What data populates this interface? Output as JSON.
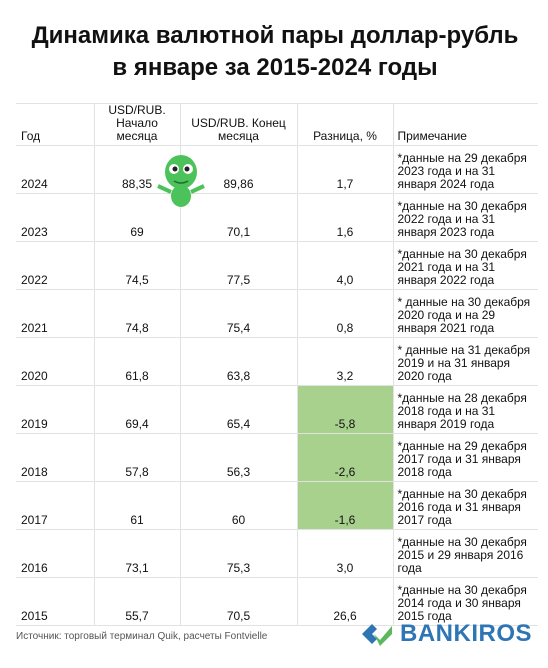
{
  "header": {
    "title": "Динамика валютной пары доллар-рубль в январе за 2015-2024 годы"
  },
  "table": {
    "columns": [
      "Год",
      "USD/RUB. Начало месяца",
      "USD/RUB. Конец месяца",
      "Разница, %",
      "Примечание"
    ],
    "rows": [
      [
        "2024",
        "88,35",
        "89,86",
        "1,7",
        "*данные на 29 декабря 2023 года и на 31 января 2024 года"
      ],
      [
        "2023",
        "69",
        "70,1",
        "1,6",
        "*данные на 30 декабря 2022 года и на 31 января 2023 года"
      ],
      [
        "2022",
        "74,5",
        "77,5",
        "4,0",
        "*данные на 30 декабря 2021 года и на 31 января 2022 года"
      ],
      [
        "2021",
        "74,8",
        "75,4",
        "0,8",
        "* данные на 30 декабря 2020 года и на  29 января 2021 года"
      ],
      [
        "2020",
        "61,8",
        "63,8",
        "3,2",
        "* данные на 31 декабря 2019 и на 31 января 2020  года"
      ],
      [
        "2019",
        "69,4",
        "65,4",
        "-5,8",
        "*данные на 28 декабря 2018 года и на 31 января 2019 года"
      ],
      [
        "2018",
        "57,8",
        "56,3",
        "-2,6",
        "*данные на 29 декабря 2017 года и 31 января 2018 года"
      ],
      [
        "2017",
        "61",
        "60",
        "-1,6",
        "*данные на 30 декабря 2016 года и 31 января 2017 года"
      ],
      [
        "2016",
        "73,1",
        "75,3",
        "3,0",
        "*данные на 30 декабря 2015 и 29 января 2016 года"
      ],
      [
        "2015",
        "55,7",
        "70,5",
        "26,6",
        "*данные на 30 декабря 2014 года и 30 января 2015 года"
      ]
    ]
  },
  "footer": {
    "source": "Источник: торговый терминал Quik, расчеты Fontvielle",
    "logo": "BANKIROS"
  }
}
